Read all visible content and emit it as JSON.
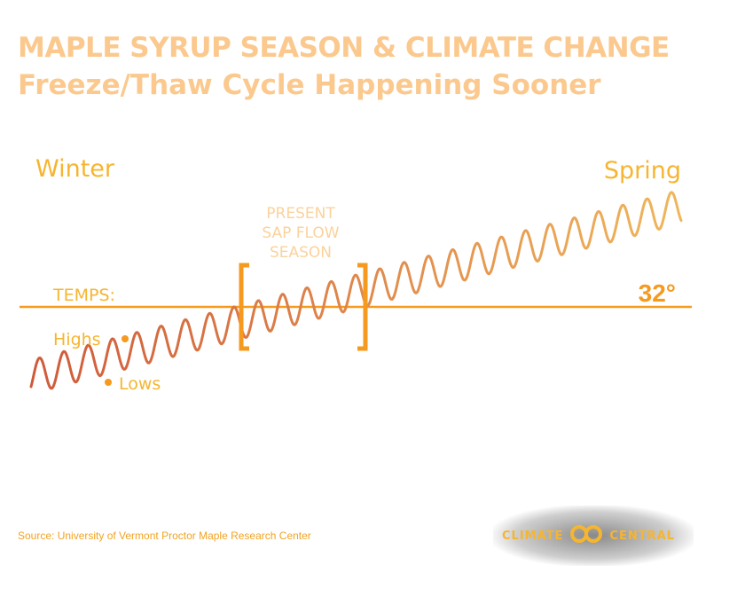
{
  "title": "MAPLE SYRUP SEASON & CLIMATE CHANGE",
  "subtitle": "Freeze/Thaw Cycle Happening Sooner",
  "labels": {
    "winter": "Winter",
    "spring": "Spring",
    "present_season": [
      "PRESENT",
      "SAP FLOW",
      "SEASON"
    ],
    "temps": "TEMPS:",
    "threshold": "32°",
    "highs": "Highs",
    "lows": "Lows"
  },
  "source": "Source: University of Vermont Proctor Maple Research Center",
  "logo": {
    "left": "CLIMATE",
    "right": "CENTRAL",
    "mark": "climate-central-logo-icon"
  },
  "colors": {
    "title": "#fbc98e",
    "label": "#f6b530",
    "line_32": "#f59a1e",
    "bracket": "#f59a1e",
    "wave_start": "#cf5a3a",
    "wave_end": "#f0b65c"
  }
}
